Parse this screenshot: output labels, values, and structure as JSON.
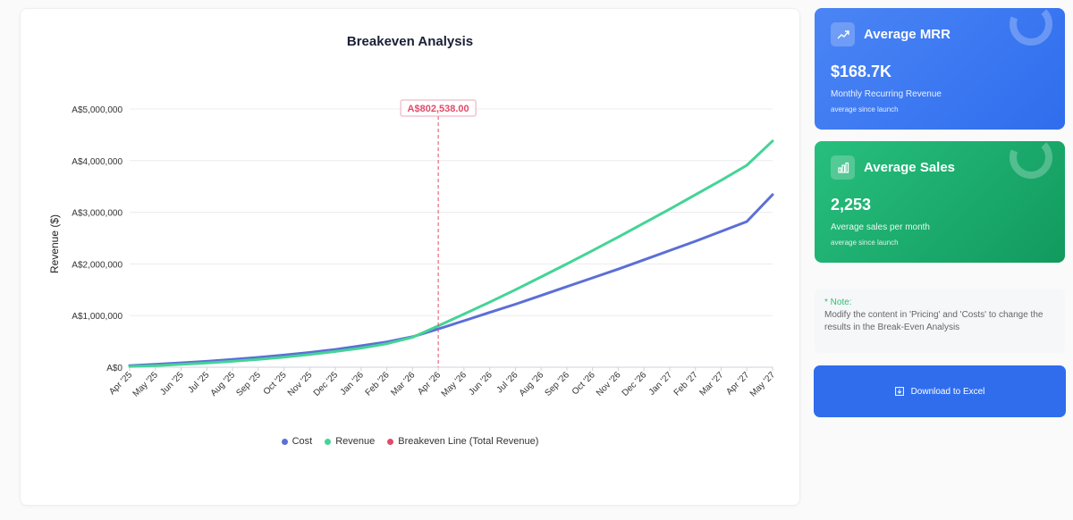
{
  "chart_data": {
    "type": "line",
    "title": "Breakeven Analysis",
    "ylabel": "Revenue ($)",
    "xlabel": "",
    "ylim": [
      0,
      5000000
    ],
    "yticks": [
      0,
      1000000,
      2000000,
      3000000,
      4000000,
      5000000
    ],
    "ytick_labels": [
      "A$0",
      "A$1,000,000",
      "A$2,000,000",
      "A$3,000,000",
      "A$4,000,000",
      "A$5,000,000"
    ],
    "categories": [
      "Apr '25",
      "May '25",
      "Jun '25",
      "Jul '25",
      "Aug '25",
      "Sep '25",
      "Oct '25",
      "Nov '25",
      "Dec '25",
      "Jan '26",
      "Feb '26",
      "Mar '26",
      "Apr '26",
      "May '26",
      "Jun '26",
      "Jul '26",
      "Aug '26",
      "Sep '26",
      "Oct '26",
      "Nov '26",
      "Dec '26",
      "Jan '27",
      "Feb '27",
      "Mar '27",
      "Apr '27",
      "May '27"
    ],
    "series": [
      {
        "name": "Cost",
        "color": "#5b6fd6",
        "values": [
          30000,
          55000,
          85000,
          115000,
          150000,
          190000,
          235000,
          285000,
          345000,
          415000,
          490000,
          590000,
          740000,
          900000,
          1060000,
          1220000,
          1390000,
          1560000,
          1730000,
          1900000,
          2080000,
          2260000,
          2440000,
          2630000,
          2820000,
          3340000
        ]
      },
      {
        "name": "Revenue",
        "color": "#44d496",
        "values": [
          15000,
          32000,
          55000,
          82000,
          115000,
          150000,
          195000,
          245000,
          305000,
          370000,
          455000,
          580000,
          800000,
          1030000,
          1260000,
          1500000,
          1750000,
          2000000,
          2260000,
          2520000,
          2790000,
          3060000,
          3340000,
          3620000,
          3910000,
          4380000
        ]
      }
    ],
    "breakeven": {
      "name": "Breakeven Line (Total Revenue)",
      "label": "A$802,538.00",
      "category": "Apr '26",
      "value": 802538,
      "color": "#e14b6a"
    },
    "legend": [
      "Cost",
      "Revenue",
      "Breakeven Line (Total Revenue)"
    ],
    "legend_position": "bottom"
  },
  "cards": {
    "mrr": {
      "title": "Average MRR",
      "value": "$168.7K",
      "subtitle": "Monthly Recurring Revenue",
      "footer": "average since launch",
      "icon": "trending-up-icon"
    },
    "sales": {
      "title": "Average Sales",
      "value": "2,253",
      "subtitle": "Average sales per month",
      "footer": "average since launch",
      "icon": "bar-chart-icon"
    }
  },
  "note": {
    "label": "* Note:",
    "text": "Modify the content in 'Pricing' and 'Costs' to change the results in the Break-Even Analysis"
  },
  "download": {
    "label": "Download to Excel",
    "icon": "download-icon"
  },
  "colors": {
    "blue": "#2f6ded",
    "green": "#1fae6e",
    "breakeven": "#e14b6a"
  }
}
